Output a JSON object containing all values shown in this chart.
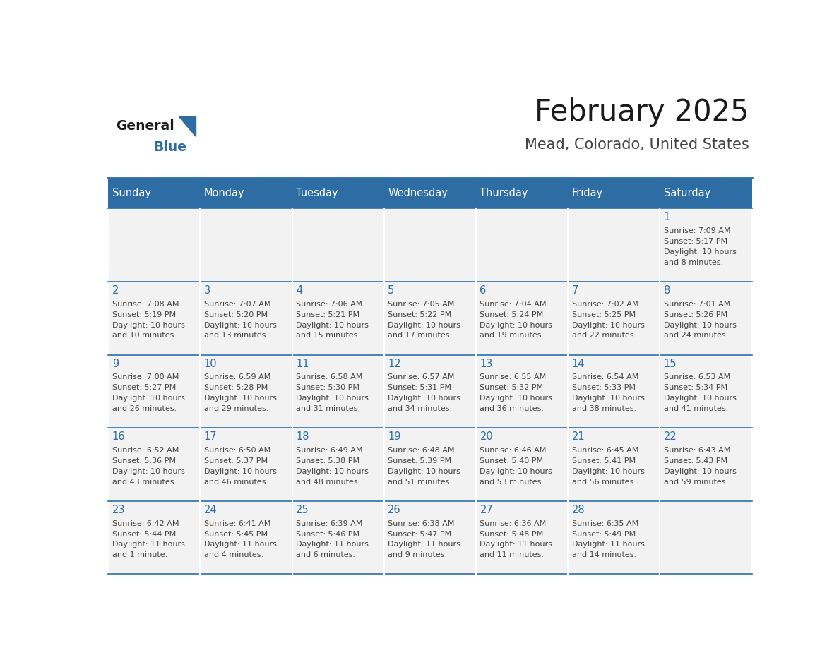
{
  "title": "February 2025",
  "subtitle": "Mead, Colorado, United States",
  "days_of_week": [
    "Sunday",
    "Monday",
    "Tuesday",
    "Wednesday",
    "Thursday",
    "Friday",
    "Saturday"
  ],
  "header_bg": "#2E6DA4",
  "header_text": "#FFFFFF",
  "cell_bg": "#F2F2F2",
  "cell_border": "#2E6DA4",
  "day_num_color": "#2E6DA4",
  "info_text_color": "#444444",
  "title_color": "#1A1A1A",
  "subtitle_color": "#444444",
  "logo_general_color": "#1A1A1A",
  "logo_blue_color": "#2E6DA4",
  "weeks": [
    [
      {
        "day": null,
        "info": ""
      },
      {
        "day": null,
        "info": ""
      },
      {
        "day": null,
        "info": ""
      },
      {
        "day": null,
        "info": ""
      },
      {
        "day": null,
        "info": ""
      },
      {
        "day": null,
        "info": ""
      },
      {
        "day": 1,
        "info": "Sunrise: 7:09 AM\nSunset: 5:17 PM\nDaylight: 10 hours\nand 8 minutes."
      }
    ],
    [
      {
        "day": 2,
        "info": "Sunrise: 7:08 AM\nSunset: 5:19 PM\nDaylight: 10 hours\nand 10 minutes."
      },
      {
        "day": 3,
        "info": "Sunrise: 7:07 AM\nSunset: 5:20 PM\nDaylight: 10 hours\nand 13 minutes."
      },
      {
        "day": 4,
        "info": "Sunrise: 7:06 AM\nSunset: 5:21 PM\nDaylight: 10 hours\nand 15 minutes."
      },
      {
        "day": 5,
        "info": "Sunrise: 7:05 AM\nSunset: 5:22 PM\nDaylight: 10 hours\nand 17 minutes."
      },
      {
        "day": 6,
        "info": "Sunrise: 7:04 AM\nSunset: 5:24 PM\nDaylight: 10 hours\nand 19 minutes."
      },
      {
        "day": 7,
        "info": "Sunrise: 7:02 AM\nSunset: 5:25 PM\nDaylight: 10 hours\nand 22 minutes."
      },
      {
        "day": 8,
        "info": "Sunrise: 7:01 AM\nSunset: 5:26 PM\nDaylight: 10 hours\nand 24 minutes."
      }
    ],
    [
      {
        "day": 9,
        "info": "Sunrise: 7:00 AM\nSunset: 5:27 PM\nDaylight: 10 hours\nand 26 minutes."
      },
      {
        "day": 10,
        "info": "Sunrise: 6:59 AM\nSunset: 5:28 PM\nDaylight: 10 hours\nand 29 minutes."
      },
      {
        "day": 11,
        "info": "Sunrise: 6:58 AM\nSunset: 5:30 PM\nDaylight: 10 hours\nand 31 minutes."
      },
      {
        "day": 12,
        "info": "Sunrise: 6:57 AM\nSunset: 5:31 PM\nDaylight: 10 hours\nand 34 minutes."
      },
      {
        "day": 13,
        "info": "Sunrise: 6:55 AM\nSunset: 5:32 PM\nDaylight: 10 hours\nand 36 minutes."
      },
      {
        "day": 14,
        "info": "Sunrise: 6:54 AM\nSunset: 5:33 PM\nDaylight: 10 hours\nand 38 minutes."
      },
      {
        "day": 15,
        "info": "Sunrise: 6:53 AM\nSunset: 5:34 PM\nDaylight: 10 hours\nand 41 minutes."
      }
    ],
    [
      {
        "day": 16,
        "info": "Sunrise: 6:52 AM\nSunset: 5:36 PM\nDaylight: 10 hours\nand 43 minutes."
      },
      {
        "day": 17,
        "info": "Sunrise: 6:50 AM\nSunset: 5:37 PM\nDaylight: 10 hours\nand 46 minutes."
      },
      {
        "day": 18,
        "info": "Sunrise: 6:49 AM\nSunset: 5:38 PM\nDaylight: 10 hours\nand 48 minutes."
      },
      {
        "day": 19,
        "info": "Sunrise: 6:48 AM\nSunset: 5:39 PM\nDaylight: 10 hours\nand 51 minutes."
      },
      {
        "day": 20,
        "info": "Sunrise: 6:46 AM\nSunset: 5:40 PM\nDaylight: 10 hours\nand 53 minutes."
      },
      {
        "day": 21,
        "info": "Sunrise: 6:45 AM\nSunset: 5:41 PM\nDaylight: 10 hours\nand 56 minutes."
      },
      {
        "day": 22,
        "info": "Sunrise: 6:43 AM\nSunset: 5:43 PM\nDaylight: 10 hours\nand 59 minutes."
      }
    ],
    [
      {
        "day": 23,
        "info": "Sunrise: 6:42 AM\nSunset: 5:44 PM\nDaylight: 11 hours\nand 1 minute."
      },
      {
        "day": 24,
        "info": "Sunrise: 6:41 AM\nSunset: 5:45 PM\nDaylight: 11 hours\nand 4 minutes."
      },
      {
        "day": 25,
        "info": "Sunrise: 6:39 AM\nSunset: 5:46 PM\nDaylight: 11 hours\nand 6 minutes."
      },
      {
        "day": 26,
        "info": "Sunrise: 6:38 AM\nSunset: 5:47 PM\nDaylight: 11 hours\nand 9 minutes."
      },
      {
        "day": 27,
        "info": "Sunrise: 6:36 AM\nSunset: 5:48 PM\nDaylight: 11 hours\nand 11 minutes."
      },
      {
        "day": 28,
        "info": "Sunrise: 6:35 AM\nSunset: 5:49 PM\nDaylight: 11 hours\nand 14 minutes."
      },
      {
        "day": null,
        "info": ""
      }
    ]
  ]
}
